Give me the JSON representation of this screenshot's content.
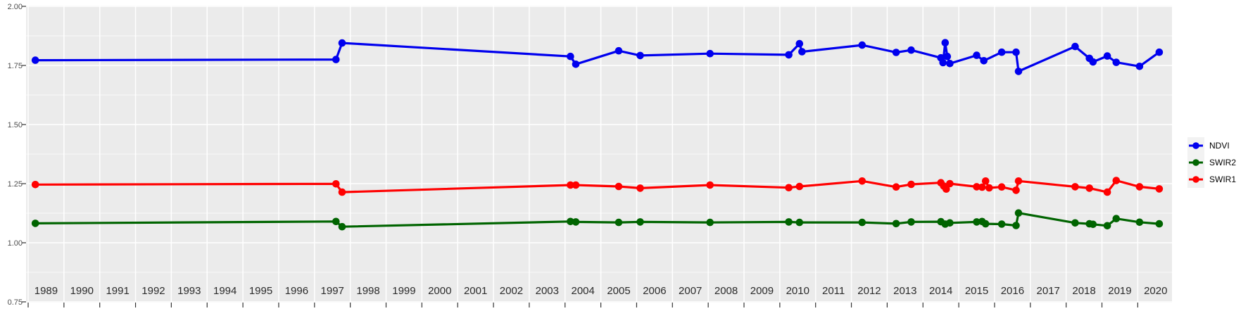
{
  "chart_data": {
    "type": "line",
    "title": "",
    "xlabel": "",
    "ylabel": "",
    "xlim": [
      1988.94,
      2021.05
    ],
    "ylim": [
      0.75,
      2.0
    ],
    "grid": "white major+minor horizontal gridlines and white vertical year gridlines on light-gray panel (ggplot style)",
    "legend_position": "right",
    "x_tick_years": [
      1989,
      1990,
      1991,
      1992,
      1993,
      1994,
      1995,
      1996,
      1997,
      1998,
      1999,
      2000,
      2001,
      2002,
      2003,
      2004,
      2005,
      2006,
      2007,
      2008,
      2009,
      2010,
      2011,
      2012,
      2013,
      2014,
      2015,
      2016,
      2017,
      2018,
      2019,
      2020
    ],
    "y_ticks": [
      {
        "label": "2.00",
        "value": 2.0
      },
      {
        "label": "1.75",
        "value": 1.75
      },
      {
        "label": "1.50",
        "value": 1.5
      },
      {
        "label": "1.25",
        "value": 1.25
      },
      {
        "label": "1.00",
        "value": 1.0
      },
      {
        "label": "0.75",
        "value": 0.75
      }
    ],
    "y_minor_ticks": [
      1.875,
      1.625,
      1.375,
      1.125,
      0.875
    ],
    "series": [
      {
        "name": "NDVI",
        "color": "#0000ee",
        "points": [
          [
            1989.2,
            1.772
          ],
          [
            1997.6,
            1.775
          ],
          [
            1997.77,
            1.845
          ],
          [
            2004.15,
            1.788
          ],
          [
            2004.3,
            1.755
          ],
          [
            2005.5,
            1.812
          ],
          [
            2006.1,
            1.792
          ],
          [
            2008.05,
            1.8
          ],
          [
            2010.25,
            1.795
          ],
          [
            2010.55,
            1.842
          ],
          [
            2010.62,
            1.808
          ],
          [
            2012.3,
            1.836
          ],
          [
            2013.25,
            1.805
          ],
          [
            2013.67,
            1.815
          ],
          [
            2014.5,
            1.782
          ],
          [
            2014.56,
            1.762
          ],
          [
            2014.62,
            1.846
          ],
          [
            2014.68,
            1.788
          ],
          [
            2014.75,
            1.758
          ],
          [
            2015.5,
            1.793
          ],
          [
            2015.7,
            1.77
          ],
          [
            2016.2,
            1.806
          ],
          [
            2016.6,
            1.806
          ],
          [
            2016.67,
            1.725
          ],
          [
            2018.25,
            1.83
          ],
          [
            2018.65,
            1.78
          ],
          [
            2018.75,
            1.765
          ],
          [
            2019.15,
            1.79
          ],
          [
            2019.4,
            1.763
          ],
          [
            2020.05,
            1.746
          ],
          [
            2020.6,
            1.806
          ]
        ]
      },
      {
        "name": "SWIR2",
        "color": "#006400",
        "points": [
          [
            1989.2,
            1.082
          ],
          [
            1997.6,
            1.09
          ],
          [
            1997.77,
            1.068
          ],
          [
            2004.15,
            1.09
          ],
          [
            2004.3,
            1.088
          ],
          [
            2005.5,
            1.086
          ],
          [
            2006.1,
            1.088
          ],
          [
            2008.05,
            1.086
          ],
          [
            2010.25,
            1.088
          ],
          [
            2010.55,
            1.086
          ],
          [
            2012.3,
            1.086
          ],
          [
            2013.25,
            1.081
          ],
          [
            2013.67,
            1.088
          ],
          [
            2014.5,
            1.089
          ],
          [
            2014.62,
            1.079
          ],
          [
            2014.75,
            1.084
          ],
          [
            2015.5,
            1.088
          ],
          [
            2015.65,
            1.09
          ],
          [
            2015.75,
            1.08
          ],
          [
            2016.2,
            1.079
          ],
          [
            2016.6,
            1.073
          ],
          [
            2016.67,
            1.126
          ],
          [
            2018.25,
            1.084
          ],
          [
            2018.65,
            1.08
          ],
          [
            2018.75,
            1.078
          ],
          [
            2019.15,
            1.072
          ],
          [
            2019.4,
            1.102
          ],
          [
            2020.05,
            1.087
          ],
          [
            2020.6,
            1.08
          ]
        ]
      },
      {
        "name": "SWIR1",
        "color": "#ff0000",
        "points": [
          [
            1989.2,
            1.246
          ],
          [
            1997.6,
            1.249
          ],
          [
            1997.77,
            1.214
          ],
          [
            2004.15,
            1.244
          ],
          [
            2004.3,
            1.244
          ],
          [
            2005.5,
            1.238
          ],
          [
            2006.1,
            1.231
          ],
          [
            2008.05,
            1.244
          ],
          [
            2010.25,
            1.233
          ],
          [
            2010.55,
            1.238
          ],
          [
            2012.3,
            1.261
          ],
          [
            2013.25,
            1.236
          ],
          [
            2013.67,
            1.247
          ],
          [
            2014.5,
            1.254
          ],
          [
            2014.58,
            1.24
          ],
          [
            2014.65,
            1.227
          ],
          [
            2014.75,
            1.25
          ],
          [
            2015.5,
            1.237
          ],
          [
            2015.65,
            1.235
          ],
          [
            2015.75,
            1.261
          ],
          [
            2015.85,
            1.232
          ],
          [
            2016.2,
            1.236
          ],
          [
            2016.6,
            1.222
          ],
          [
            2016.67,
            1.261
          ],
          [
            2018.25,
            1.237
          ],
          [
            2018.65,
            1.231
          ],
          [
            2019.15,
            1.214
          ],
          [
            2019.4,
            1.263
          ],
          [
            2020.05,
            1.237
          ],
          [
            2020.6,
            1.228
          ]
        ]
      }
    ]
  },
  "legend": {
    "items": [
      {
        "label": "NDVI",
        "color": "#0000ee"
      },
      {
        "label": "SWIR2",
        "color": "#006400"
      },
      {
        "label": "SWIR1",
        "color": "#ff0000"
      }
    ]
  },
  "colors": {
    "panel_background": "#ebebeb",
    "grid": "#ffffff",
    "page_background": "#ffffff",
    "axis_text_y": "#4d4d4d",
    "axis_text_x": "#2b2b2b",
    "tick_marks": "#333333",
    "legend_key_background": "#f2f2f2"
  }
}
